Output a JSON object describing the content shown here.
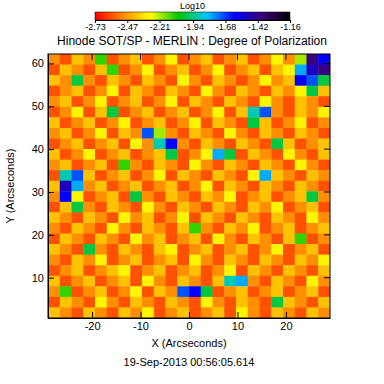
{
  "chart_data": {
    "type": "heatmap",
    "title": "Hinode SOT/SP - MERLIN : Degree of Polarization",
    "xlabel": "X (Arcseconds)",
    "ylabel": "Y (Arcseconds)",
    "annotation": "19-Sep-2013 00:56:05.614",
    "xlim": [
      -29.1,
      29.1
    ],
    "ylim": [
      0.6,
      62.2
    ],
    "xticks": [
      -20,
      -10,
      0,
      10,
      20
    ],
    "yticks": [
      10,
      20,
      30,
      40,
      50,
      60
    ],
    "colorbar": {
      "label": "Log10",
      "range": [
        -2.73,
        -1.16
      ],
      "ticks": [
        -2.73,
        -2.47,
        -2.21,
        -1.94,
        -1.68,
        -1.42,
        -1.16
      ]
    },
    "z": [
      [
        -2.5,
        -2.6,
        -2.4,
        -2.5,
        -2.1,
        -2.6,
        -2.5,
        -2.4,
        -2.6,
        -2.5,
        -2.3,
        -2.6,
        -2.5,
        -2.4,
        -2.6,
        -2.5,
        -2.4,
        -2.6,
        -2.5,
        -2.3,
        -2.5,
        -2.2,
        -1.4,
        -1.6
      ],
      [
        -2.6,
        -2.4,
        -2.5,
        -2.6,
        -2.4,
        -2.1,
        -2.6,
        -2.5,
        -2.3,
        -2.6,
        -2.5,
        -2.4,
        -2.6,
        -2.5,
        -2.3,
        -2.6,
        -2.5,
        -2.4,
        -2.6,
        -2.4,
        -2.3,
        -1.8,
        -1.5,
        -1.4
      ],
      [
        -2.4,
        -2.5,
        -2.0,
        -2.5,
        -2.6,
        -2.4,
        -2.5,
        -2.6,
        -2.4,
        -2.5,
        -2.6,
        -2.3,
        -2.5,
        -2.6,
        -2.4,
        -2.5,
        -2.6,
        -2.5,
        -2.3,
        -2.5,
        -2.4,
        -1.6,
        -1.7,
        -2.0
      ],
      [
        -2.6,
        -2.5,
        -2.4,
        -2.6,
        -2.5,
        -2.3,
        -2.6,
        -2.4,
        -2.5,
        -2.6,
        -2.4,
        -2.5,
        -2.6,
        -2.3,
        -2.5,
        -2.6,
        -2.4,
        -2.5,
        -2.6,
        -2.4,
        -2.5,
        -2.3,
        -2.0,
        -2.4
      ],
      [
        -2.5,
        -2.4,
        -2.6,
        -2.5,
        -2.3,
        -2.6,
        -2.5,
        -2.4,
        -2.6,
        -2.5,
        -2.3,
        -2.6,
        -2.4,
        -2.5,
        -2.6,
        -2.4,
        -2.5,
        -2.6,
        -2.3,
        -2.5,
        -2.6,
        -2.4,
        -2.5,
        -2.6
      ],
      [
        -2.6,
        -2.5,
        -2.3,
        -2.6,
        -2.4,
        -2.0,
        -2.6,
        -2.5,
        -2.4,
        -2.6,
        -2.5,
        -2.4,
        -2.6,
        -2.5,
        -2.3,
        -2.6,
        -2.4,
        -1.9,
        -1.7,
        -2.5,
        -2.6,
        -2.4,
        -2.5,
        -2.3
      ],
      [
        -2.4,
        -2.6,
        -2.5,
        -2.4,
        -2.6,
        -2.5,
        -2.3,
        -2.6,
        -2.5,
        -2.4,
        -2.6,
        -2.5,
        -2.3,
        -2.6,
        -2.4,
        -2.5,
        -2.6,
        -2.0,
        -2.4,
        -2.6,
        -2.5,
        -2.3,
        -2.6,
        -2.5
      ],
      [
        -2.5,
        -2.4,
        -2.6,
        -2.5,
        -2.3,
        -2.6,
        -2.4,
        -2.5,
        -1.7,
        -2.2,
        -2.5,
        -2.6,
        -2.4,
        -2.5,
        -2.6,
        -2.3,
        -2.5,
        -2.6,
        -2.4,
        -2.5,
        -2.6,
        -2.4,
        -2.5,
        -2.6
      ],
      [
        -2.6,
        -2.5,
        -2.4,
        -2.6,
        -2.5,
        -2.4,
        -2.6,
        -2.3,
        -2.5,
        -1.9,
        -1.6,
        -2.5,
        -2.6,
        -2.4,
        -2.5,
        -2.6,
        -2.4,
        -2.5,
        -2.6,
        -2.0,
        -2.4,
        -2.6,
        -2.5,
        -2.4
      ],
      [
        -2.4,
        -2.6,
        -2.5,
        -2.3,
        -2.6,
        -2.5,
        -2.4,
        -2.6,
        -2.5,
        -2.4,
        -2.0,
        -2.6,
        -2.5,
        -2.3,
        -1.8,
        -2.0,
        -2.6,
        -2.4,
        -2.5,
        -2.6,
        -2.3,
        -2.5,
        -2.6,
        -2.4
      ],
      [
        -2.5,
        -2.4,
        -2.6,
        -2.5,
        -2.4,
        -2.6,
        -2.1,
        -2.5,
        -2.6,
        -2.4,
        -2.5,
        -2.6,
        -2.3,
        -2.5,
        -2.6,
        -2.4,
        -2.5,
        -2.6,
        -2.4,
        -2.5,
        -2.6,
        -2.3,
        -2.5,
        -2.6
      ],
      [
        -2.6,
        -1.9,
        -1.7,
        -2.4,
        -2.6,
        -2.5,
        -2.4,
        -2.6,
        -2.5,
        -2.3,
        -2.6,
        -2.4,
        -2.5,
        -2.6,
        -2.4,
        -2.5,
        -2.6,
        -2.3,
        -1.8,
        -2.4,
        -2.5,
        -2.6,
        -2.4,
        -2.5
      ],
      [
        -2.4,
        -1.5,
        -1.8,
        -2.5,
        -2.4,
        -2.6,
        -2.5,
        -2.4,
        -2.6,
        -2.5,
        -2.4,
        -2.6,
        -2.5,
        -2.3,
        -2.6,
        -2.4,
        -2.5,
        -2.6,
        -2.4,
        -2.5,
        -2.6,
        -2.4,
        -2.5,
        -2.6
      ],
      [
        -2.5,
        -1.6,
        -2.3,
        -2.6,
        -2.5,
        -2.4,
        -2.6,
        -2.0,
        -2.5,
        -2.6,
        -2.4,
        -2.5,
        -2.6,
        -2.4,
        -2.5,
        -2.3,
        -2.6,
        -2.5,
        -2.4,
        -2.6,
        -2.5,
        -2.4,
        -2.0,
        -2.5
      ],
      [
        -2.6,
        -2.4,
        -2.0,
        -2.5,
        -2.6,
        -2.4,
        -2.5,
        -2.6,
        -2.3,
        -2.5,
        -2.6,
        -2.4,
        -2.5,
        -2.6,
        -2.4,
        -2.5,
        -2.6,
        -2.4,
        -2.5,
        -2.3,
        -2.6,
        -2.5,
        -2.4,
        -2.6
      ],
      [
        -2.4,
        -2.5,
        -2.6,
        -2.4,
        -2.5,
        -2.6,
        -2.3,
        -2.5,
        -2.4,
        -2.6,
        -2.5,
        -2.3,
        -2.6,
        -2.4,
        -2.5,
        -2.6,
        -2.4,
        -2.5,
        -2.6,
        -2.4,
        -2.5,
        -2.6,
        -2.3,
        -2.5
      ],
      [
        -2.5,
        -2.6,
        -2.4,
        -2.5,
        -2.6,
        -2.3,
        -2.5,
        -2.6,
        -2.4,
        -2.5,
        -2.6,
        -2.4,
        -2.1,
        -2.5,
        -2.6,
        -2.4,
        -2.5,
        -2.3,
        -2.6,
        -2.5,
        -2.4,
        -2.6,
        -2.5,
        -2.4
      ],
      [
        -2.6,
        -2.4,
        -2.5,
        -2.6,
        -2.4,
        -2.5,
        -2.6,
        -2.3,
        -2.5,
        -2.4,
        -2.6,
        -2.5,
        -2.4,
        -2.6,
        -2.3,
        -2.5,
        -2.6,
        -2.4,
        -2.5,
        -2.6,
        -2.4,
        -2.1,
        -2.6,
        -2.5
      ],
      [
        -2.4,
        -2.5,
        -2.6,
        -2.0,
        -2.5,
        -2.6,
        -2.4,
        -2.5,
        -2.6,
        -2.4,
        -2.3,
        -2.6,
        -2.5,
        -2.4,
        -2.6,
        -2.5,
        -2.4,
        -2.6,
        -2.5,
        -2.3,
        -2.6,
        -2.5,
        -2.4,
        -2.6
      ],
      [
        -2.5,
        -2.6,
        -2.4,
        -2.5,
        -2.3,
        -2.6,
        -2.5,
        -2.4,
        -2.6,
        -2.5,
        -2.4,
        -2.6,
        -2.3,
        -2.5,
        -2.6,
        -2.4,
        -2.5,
        -2.6,
        -2.4,
        -2.5,
        -2.6,
        -2.4,
        -2.5,
        -2.3
      ],
      [
        -2.6,
        -2.5,
        -2.4,
        -2.6,
        -2.5,
        -2.4,
        -2.3,
        -2.6,
        -2.5,
        -2.4,
        -2.6,
        -2.5,
        -2.4,
        -2.6,
        -2.5,
        -2.3,
        -2.6,
        -2.4,
        -2.5,
        -2.6,
        -2.4,
        -2.5,
        -2.6,
        -2.4
      ],
      [
        -2.4,
        -2.6,
        -2.5,
        -2.4,
        -2.6,
        -2.5,
        -2.4,
        -2.6,
        -2.3,
        -2.5,
        -2.6,
        -2.4,
        -2.5,
        -2.6,
        -2.4,
        -1.9,
        -1.8,
        -2.5,
        -2.6,
        -2.4,
        -2.5,
        -2.6,
        -2.3,
        -2.5
      ],
      [
        -2.5,
        -2.1,
        -2.6,
        -2.5,
        -2.4,
        -2.6,
        -2.5,
        -2.3,
        -2.6,
        -2.4,
        -2.5,
        -1.7,
        -1.6,
        -2.0,
        -2.6,
        -2.5,
        -2.4,
        -2.6,
        -2.5,
        -2.4,
        -2.6,
        -2.5,
        -2.4,
        -2.6
      ],
      [
        -2.6,
        -2.4,
        -2.5,
        -2.6,
        -2.3,
        -2.5,
        -2.6,
        -2.4,
        -2.5,
        -2.6,
        -2.4,
        -2.5,
        -2.6,
        -2.3,
        -2.5,
        -2.6,
        -2.4,
        -2.5,
        -2.6,
        -2.0,
        -2.4,
        -2.5,
        -2.6,
        -2.4
      ],
      [
        -2.4,
        -2.5,
        -2.6,
        -2.4,
        -2.5,
        -2.6,
        -2.4,
        -2.5,
        -2.3,
        -2.6,
        -2.5,
        -2.4,
        -2.6,
        -2.5,
        -2.4,
        -2.6,
        -2.3,
        -2.5,
        -2.6,
        -2.4,
        -2.5,
        -2.6,
        -2.4,
        -2.5
      ]
    ]
  }
}
